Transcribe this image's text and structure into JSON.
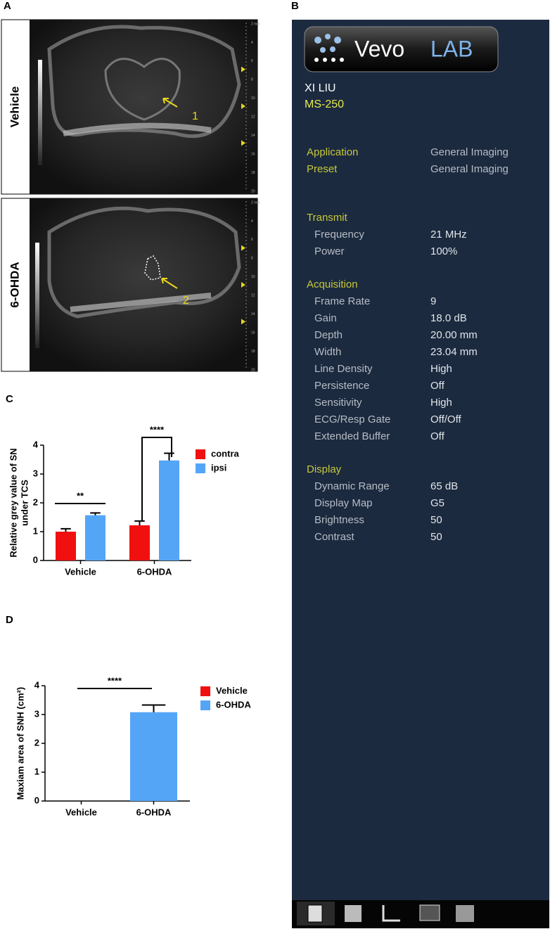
{
  "panel_labels": [
    "A",
    "B",
    "C",
    "D"
  ],
  "ultrasound": {
    "images": [
      {
        "label": "Vehicle",
        "marker": "1"
      },
      {
        "label": "6-OHDA",
        "marker": "2"
      }
    ],
    "depth_labels": [
      "2 mm",
      "4",
      "6",
      "8",
      "10",
      "12",
      "14",
      "16",
      "18",
      "20"
    ]
  },
  "vevo": {
    "logo": [
      "Vevo",
      "LAB"
    ],
    "user": "XI LIU",
    "system": "MS-250",
    "top_rows": [
      [
        "Application",
        "General Imaging"
      ],
      [
        "Preset",
        "General Imaging"
      ]
    ],
    "sections": [
      {
        "title": "Transmit",
        "rows": [
          [
            "Frequency",
            "21 MHz"
          ],
          [
            "Power",
            "100%"
          ]
        ]
      },
      {
        "title": "Acquisition",
        "rows": [
          [
            "Frame Rate",
            "9"
          ],
          [
            "Gain",
            "18.0 dB"
          ],
          [
            "Depth",
            "20.00 mm"
          ],
          [
            "Width",
            "23.04 mm"
          ],
          [
            "Line Density",
            "High"
          ],
          [
            "Persistence",
            "Off"
          ],
          [
            "Sensitivity",
            "High"
          ],
          [
            "ECG/Resp Gate",
            "Off/Off"
          ],
          [
            "Extended Buffer",
            "Off"
          ]
        ]
      },
      {
        "title": "Display",
        "rows": [
          [
            "Dynamic Range",
            "65 dB"
          ],
          [
            "Display Map",
            "G5"
          ],
          [
            "Brightness",
            "50"
          ],
          [
            "Contrast",
            "50"
          ]
        ]
      }
    ]
  },
  "chart_data": [
    {
      "type": "bar",
      "y_label": [
        "Relative grey value of SN",
        "under TCS"
      ],
      "categories": [
        "Vehicle",
        "6-OHDA"
      ],
      "series": [
        {
          "name": "contra",
          "color": "#f01010",
          "values": [
            1.0,
            1.22
          ],
          "errors": [
            0.1,
            0.15
          ]
        },
        {
          "name": "ipsi",
          "color": "#55a5f7",
          "values": [
            1.57,
            3.47
          ],
          "errors": [
            0.08,
            0.25
          ]
        }
      ],
      "annotations": [
        "**",
        "****"
      ],
      "ylim": [
        0,
        4
      ],
      "yticks": [
        0,
        1,
        2,
        3,
        4
      ]
    },
    {
      "type": "bar",
      "y_label": [
        "Maxiam area of  SNH (cm²)"
      ],
      "categories": [
        "Vehicle",
        "6-OHDA"
      ],
      "series": [
        {
          "name": "Vehicle",
          "color": "#f01010",
          "values": [
            0,
            null
          ]
        },
        {
          "name": "6-OHDA",
          "color": "#55a5f7",
          "values": [
            null,
            3.08
          ],
          "errors": [
            null,
            0.25
          ]
        }
      ],
      "annotations": [
        "****"
      ],
      "ylim": [
        0,
        4
      ],
      "yticks": [
        0,
        1,
        2,
        3,
        4
      ]
    }
  ]
}
